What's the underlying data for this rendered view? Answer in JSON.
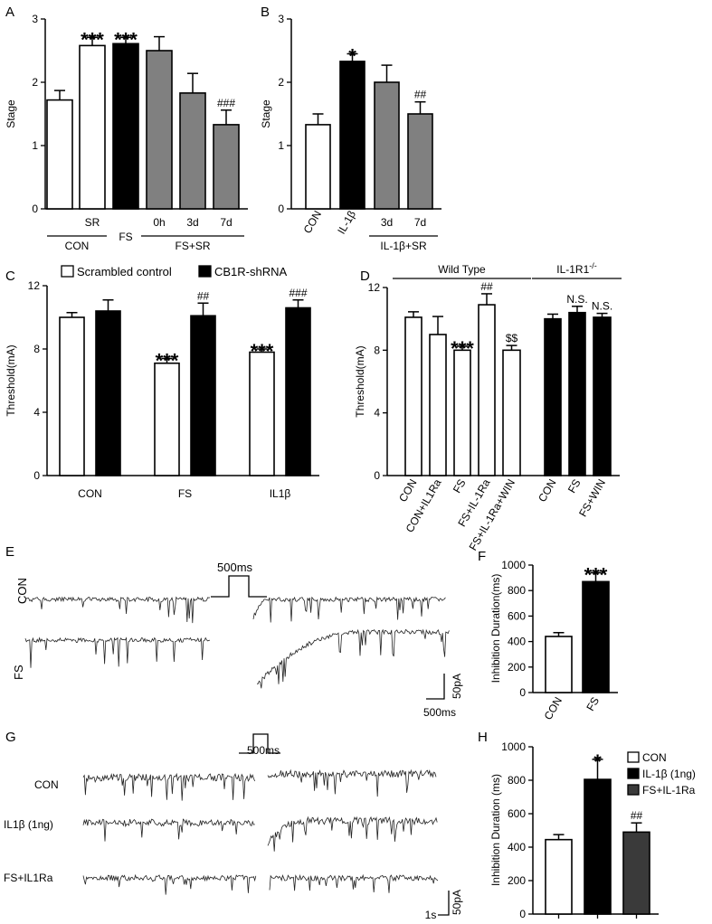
{
  "panel_labels": {
    "A": "A",
    "B": "B",
    "C": "C",
    "D": "D",
    "E": "E",
    "F": "F",
    "G": "G",
    "H": "H"
  },
  "colors": {
    "white": "#ffffff",
    "black": "#000000",
    "gray": "#808080",
    "dark_gray": "#3a3a3a"
  },
  "chart_data": [
    {
      "id": "A",
      "type": "bar",
      "ylabel": "Stage",
      "ylim": [
        0,
        3
      ],
      "yticks": [
        "0",
        "1",
        "2",
        "3"
      ],
      "categories": [
        "",
        "SR",
        "FS",
        "0h",
        "3d",
        "7d"
      ],
      "values": [
        1.72,
        2.58,
        2.61,
        2.5,
        1.83,
        1.33
      ],
      "errors": [
        0.15,
        0.13,
        0.1,
        0.22,
        0.31,
        0.23
      ],
      "fills": [
        "#ffffff",
        "#ffffff",
        "#000000",
        "#808080",
        "#808080",
        "#808080"
      ],
      "annotations": [
        "",
        "***",
        "***",
        "",
        "",
        "###"
      ],
      "groups": [
        {
          "label": "CON",
          "from": 0,
          "to": 1
        },
        {
          "label": "FS+SR",
          "from": 3,
          "to": 5
        }
      ]
    },
    {
      "id": "B",
      "type": "bar",
      "ylabel": "Stage",
      "ylim": [
        0,
        3
      ],
      "yticks": [
        "0",
        "1",
        "2",
        "3"
      ],
      "categories": [
        "CON",
        "IL-1β",
        "3d",
        "7d"
      ],
      "values": [
        1.33,
        2.33,
        2.0,
        1.5
      ],
      "errors": [
        0.17,
        0.12,
        0.27,
        0.19
      ],
      "fills": [
        "#ffffff",
        "#000000",
        "#808080",
        "#808080"
      ],
      "annotations": [
        "",
        "*",
        "",
        "##"
      ],
      "groups": [
        {
          "label": "IL-1β+SR",
          "from": 2,
          "to": 3
        }
      ]
    },
    {
      "id": "C",
      "type": "bar",
      "ylabel": "Threshold(mA)",
      "ylim": [
        0,
        12
      ],
      "yticks": [
        "0",
        "4",
        "8",
        "12"
      ],
      "categories": [
        "CON",
        "FS",
        "IL1β"
      ],
      "series": [
        {
          "name": "Scrambled control",
          "fill": "#ffffff",
          "values": [
            10.0,
            7.1,
            7.8
          ],
          "errors": [
            0.3,
            0.3,
            0.2
          ],
          "annotations": [
            "",
            "***",
            "***"
          ]
        },
        {
          "name": "CB1R-shRNA",
          "fill": "#000000",
          "values": [
            10.4,
            10.1,
            10.6
          ],
          "errors": [
            0.7,
            0.8,
            0.5
          ],
          "annotations": [
            "",
            "##",
            "###"
          ]
        }
      ]
    },
    {
      "id": "D",
      "type": "bar",
      "ylabel": "Threshold(mA)",
      "ylim": [
        0,
        12
      ],
      "yticks": [
        "0",
        "4",
        "8",
        "12"
      ],
      "categories": [
        "CON",
        "CON+IL1Ra",
        "FS",
        "FS+IL-1Ra",
        "FS+IL-1Ra+WIN",
        "CON",
        "FS",
        "FS+WIN"
      ],
      "values": [
        10.1,
        9.0,
        8.0,
        10.9,
        8.0,
        10.0,
        10.4,
        10.1
      ],
      "errors": [
        0.35,
        1.15,
        0.25,
        0.7,
        0.3,
        0.3,
        0.4,
        0.25
      ],
      "fills": [
        "#ffffff",
        "#ffffff",
        "#ffffff",
        "#ffffff",
        "#ffffff",
        "#000000",
        "#000000",
        "#000000"
      ],
      "annotations": [
        "",
        "",
        "***",
        "##",
        "$$",
        "",
        "N.S.",
        "N.S."
      ],
      "groups": [
        {
          "label": "Wild Type",
          "from": 0,
          "to": 4
        },
        {
          "label": "IL-1R1",
          "sup": "-/-",
          "from": 5,
          "to": 7
        }
      ]
    },
    {
      "id": "F",
      "type": "bar",
      "ylabel": "Inhibition Duration(ms)",
      "ylim": [
        0,
        1000
      ],
      "yticks": [
        "0",
        "200",
        "400",
        "600",
        "800",
        "1000"
      ],
      "categories": [
        "CON",
        "FS"
      ],
      "values": [
        440,
        870
      ],
      "errors": [
        30,
        70
      ],
      "fills": [
        "#ffffff",
        "#000000"
      ],
      "annotations": [
        "",
        "***"
      ]
    },
    {
      "id": "H",
      "type": "bar",
      "ylabel": "Inhibition Duration (ms)",
      "ylim": [
        0,
        1000
      ],
      "yticks": [
        "0",
        "200",
        "400",
        "600",
        "800",
        "1000"
      ],
      "categories": [
        "",
        "",
        ""
      ],
      "series_names": [
        "CON",
        "IL-1β (1ng)",
        "FS+IL-1Ra"
      ],
      "values": [
        445,
        805,
        490
      ],
      "errors": [
        30,
        120,
        55
      ],
      "fills": [
        "#ffffff",
        "#000000",
        "#3a3a3a"
      ],
      "annotations": [
        "",
        "*",
        "##"
      ]
    }
  ],
  "traces": {
    "E": {
      "rows": [
        "CON",
        "FS"
      ],
      "stim_label": "500ms",
      "scale_y": "50pA",
      "scale_x": "500ms"
    },
    "G": {
      "rows": [
        "CON",
        "IL1β (1ng)",
        "FS+IL1Ra"
      ],
      "stim_label": "500ms",
      "scale_y": "50pA",
      "scale_x": "1s"
    }
  }
}
